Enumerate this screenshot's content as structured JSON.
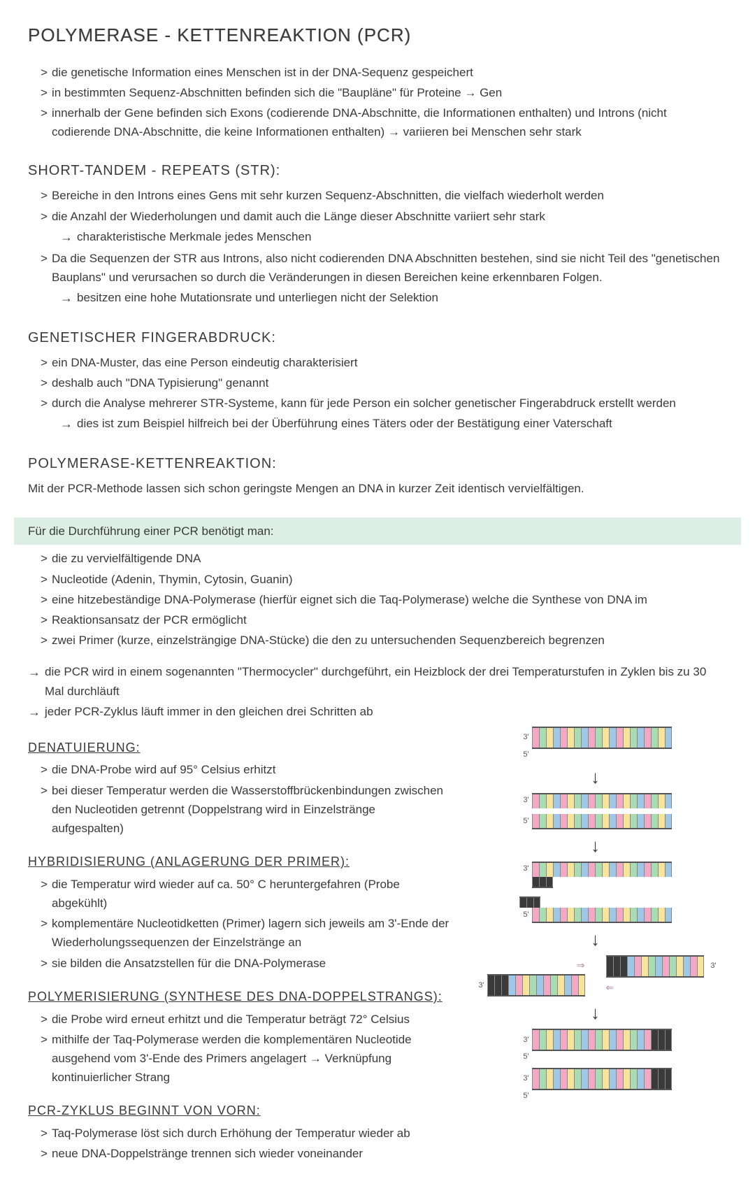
{
  "title": "POLYMERASE - KETTENREAKTION (PCR)",
  "markers": {
    "bullet": ">",
    "arrow": "→"
  },
  "intro": {
    "bullets": [
      "die genetische Information eines Menschen ist in der DNA-Sequenz gespeichert",
      "in bestimmten Sequenz-Abschnitten befinden sich die \"Baupläne\" für Proteine → Gen",
      "innerhalb der Gene befinden sich Exons (codierende DNA-Abschnitte, die Informationen enthalten) und Introns (nicht codierende DNA-Abschnitte, die keine Informationen enthalten)  → variieren bei Menschen sehr stark"
    ]
  },
  "str": {
    "title": "SHORT-TANDEM - REPEATS (STR):",
    "items": [
      {
        "bullet": "Bereiche in den Introns eines Gens mit sehr kurzen Sequenz-Abschnitten, die vielfach wiederholt werden"
      },
      {
        "bullet": "die Anzahl der Wiederholungen und damit auch die Länge dieser Abschnitte variiert sehr stark",
        "arrow": "charakteristische Merkmale jedes Menschen"
      },
      {
        "bullet": "Da die Sequenzen der STR aus Introns, also nicht codierenden DNA Abschnitten bestehen, sind sie nicht Teil des \"genetischen Bauplans\" und verursachen so durch die Veränderungen in diesen Bereichen keine erkennbaren Folgen.",
        "arrow": "besitzen eine hohe Mutationsrate und unterliegen nicht der Selektion"
      }
    ]
  },
  "fingerprint": {
    "title": "GENETISCHER FINGERABDRUCK:",
    "items": [
      {
        "bullet": "ein DNA-Muster, das eine Person eindeutig charakterisiert"
      },
      {
        "bullet": "deshalb auch \"DNA Typisierung\" genannt"
      },
      {
        "bullet": "durch die Analyse mehrerer STR-Systeme, kann für jede Person ein solcher genetischer Fingerabdruck erstellt werden",
        "arrow": "dies ist zum Beispiel hilfreich bei der Überführung eines Täters oder der Bestätigung einer Vaterschaft"
      }
    ]
  },
  "pcr": {
    "title": "POLYMERASE-KETTENREAKTION:",
    "text": "Mit der PCR-Methode lassen sich schon geringste Mengen an DNA in kurzer Zeit identisch vervielfältigen."
  },
  "requirements": {
    "title": "Für die Durchführung einer PCR benötigt man:",
    "bullets": [
      "die zu vervielfältigende DNA",
      "Nucleotide (Adenin, Thymin, Cytosin, Guanin)",
      "eine hitzebeständige DNA-Polymerase (hierfür eignet sich die Taq-Polymerase) welche die Synthese von DNA im",
      "Reaktionsansatz der PCR ermöglicht",
      "zwei Primer (kurze, einzelsträngige DNA-Stücke) die den zu untersuchenden Sequenzbereich begrenzen"
    ]
  },
  "cycle_arrows": [
    "die PCR wird in einem sogenannten \"Thermocycler\" durchgeführt, ein Heizblock der drei Temperaturstufen in Zyklen bis zu 30 Mal durchläuft",
    "jeder PCR-Zyklus läuft immer in den gleichen drei Schritten ab"
  ],
  "steps": {
    "denat": {
      "title": "DENATUIERUNG:",
      "bullets": [
        "die DNA-Probe wird auf 95° Celsius erhitzt",
        "bei dieser Temperatur werden die Wasserstoffbrückenbindungen zwischen den Nucleotiden getrennt (Doppelstrang wird in Einzelstränge aufgespalten)"
      ]
    },
    "hybrid": {
      "title": "HYBRIDISIERUNG (ANLAGERUNG DER PRIMER):",
      "bullets": [
        "die Temperatur wird wieder auf ca. 50° C heruntergefahren (Probe abgekühlt)",
        "komplementäre Nucleotidketten (Primer) lagern sich jeweils am 3'-Ende der Wiederholungssequenzen der Einzelstränge an",
        "sie bilden die Ansatzstellen für die DNA-Polymerase"
      ]
    },
    "polym": {
      "title": "POLYMERISIERUNG (SYNTHESE DES DNA-DOPPELSTRANGS):",
      "bullets": [
        "die Probe wird erneut erhitzt und die Temperatur beträgt 72° Celsius",
        "mithilfe der Taq-Polymerase werden die komplementären Nucleotide ausgehend vom 3'-Ende des Primers angelagert → Verknüpfung kontinuierlicher Strang"
      ]
    },
    "restart": {
      "title": "PCR-ZYKLUS BEGINNT VON VORN:",
      "bullets": [
        "Taq-Polymerase löst sich durch Erhöhung der Temperatur wieder ab",
        "neue DNA-Doppelstränge trennen sich wieder voneinander"
      ]
    }
  },
  "diagram": {
    "end3": "3'",
    "end5": "5'",
    "down_arrow": "↓",
    "primer_arrow_right": "⇒",
    "primer_arrow_left": "⇐",
    "colors": {
      "pink": "#f2a9c6",
      "green": "#a9dcb0",
      "yellow": "#f5e49a",
      "blue": "#9fc8e8",
      "black": "#3a3a3a",
      "band_bg": "#dceee5",
      "text": "#3a3a3a"
    },
    "strand_pattern": [
      "pink",
      "green",
      "yellow",
      "blue",
      "pink",
      "yellow",
      "green",
      "blue",
      "pink",
      "green",
      "yellow",
      "blue",
      "pink",
      "yellow",
      "green",
      "blue",
      "pink",
      "green",
      "yellow",
      "blue"
    ],
    "primer_pattern": [
      "black",
      "black",
      "black"
    ]
  }
}
